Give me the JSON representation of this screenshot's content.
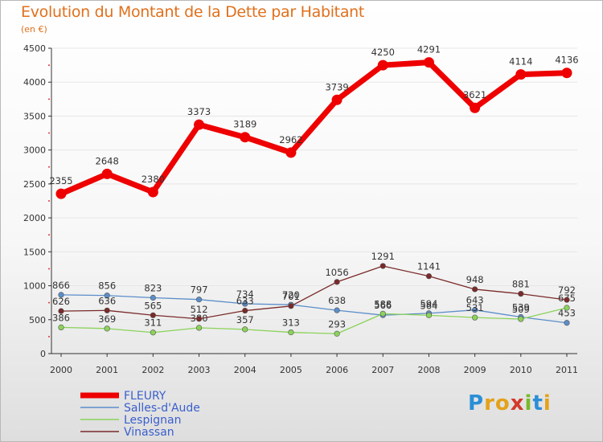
{
  "chart_data": {
    "type": "line",
    "title": "Evolution du Montant de la Dette par Habitant",
    "subtitle": "(en €)",
    "xlabel": "",
    "ylabel": "",
    "x": [
      "2000",
      "2001",
      "2002",
      "2003",
      "2004",
      "2005",
      "2006",
      "2007",
      "2008",
      "2009",
      "2010",
      "2011"
    ],
    "ylim": [
      0,
      4500
    ],
    "yticks": [
      0,
      500,
      1000,
      1500,
      2000,
      2500,
      3000,
      3500,
      4000,
      4500
    ],
    "legend_position": "bottom-left",
    "series": [
      {
        "name": "FLEURY",
        "color": "#ee0000",
        "values": [
          2355,
          2648,
          2380,
          3373,
          3189,
          2962,
          3739,
          4250,
          4291,
          3621,
          4114,
          4136
        ]
      },
      {
        "name": "Salles-d'Aude",
        "color": "#5b8ec9",
        "values": [
          866,
          856,
          823,
          797,
          734,
          720,
          638,
          566,
          594,
          643,
          539,
          453
        ]
      },
      {
        "name": "Lespignan",
        "color": "#8bd35a",
        "values": [
          386,
          369,
          311,
          380,
          357,
          313,
          293,
          588,
          564,
          531,
          509,
          675
        ]
      },
      {
        "name": "Vinassan",
        "color": "#7a2a2a",
        "values": [
          626,
          636,
          565,
          512,
          633,
          701,
          1056,
          1291,
          1141,
          948,
          881,
          792
        ]
      }
    ]
  },
  "logo_text": "Proxiti"
}
